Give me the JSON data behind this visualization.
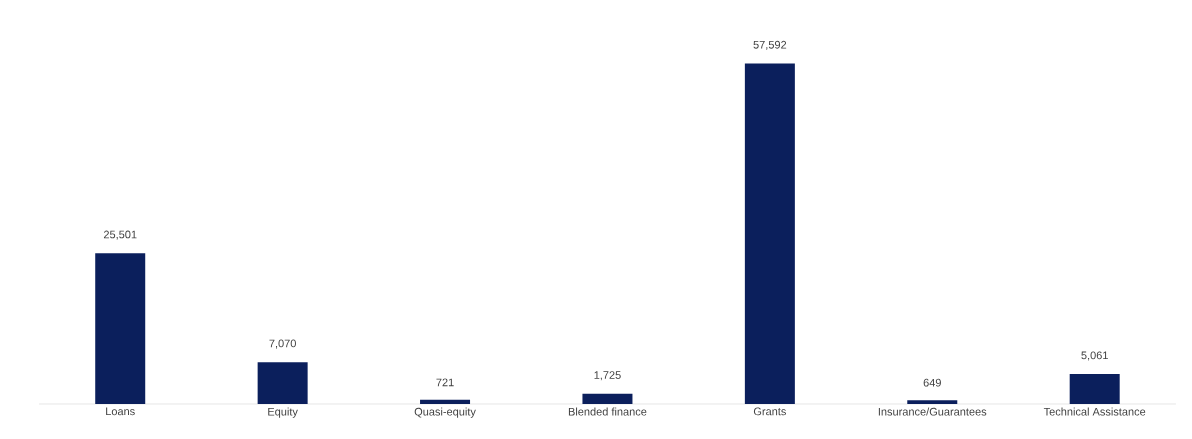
{
  "chart_data": {
    "type": "bar",
    "categories": [
      "Loans",
      "Equity",
      "Quasi-equity",
      "Blended finance",
      "Grants",
      "Insurance/Guarantees",
      "Technical Assistance"
    ],
    "values": [
      25501,
      7070,
      721,
      1725,
      57592,
      649,
      5061
    ],
    "value_labels": [
      "25,501",
      "7,070",
      "721",
      "1,725",
      "57,592",
      "649",
      "5,061"
    ],
    "color": "#0b1f5c"
  }
}
